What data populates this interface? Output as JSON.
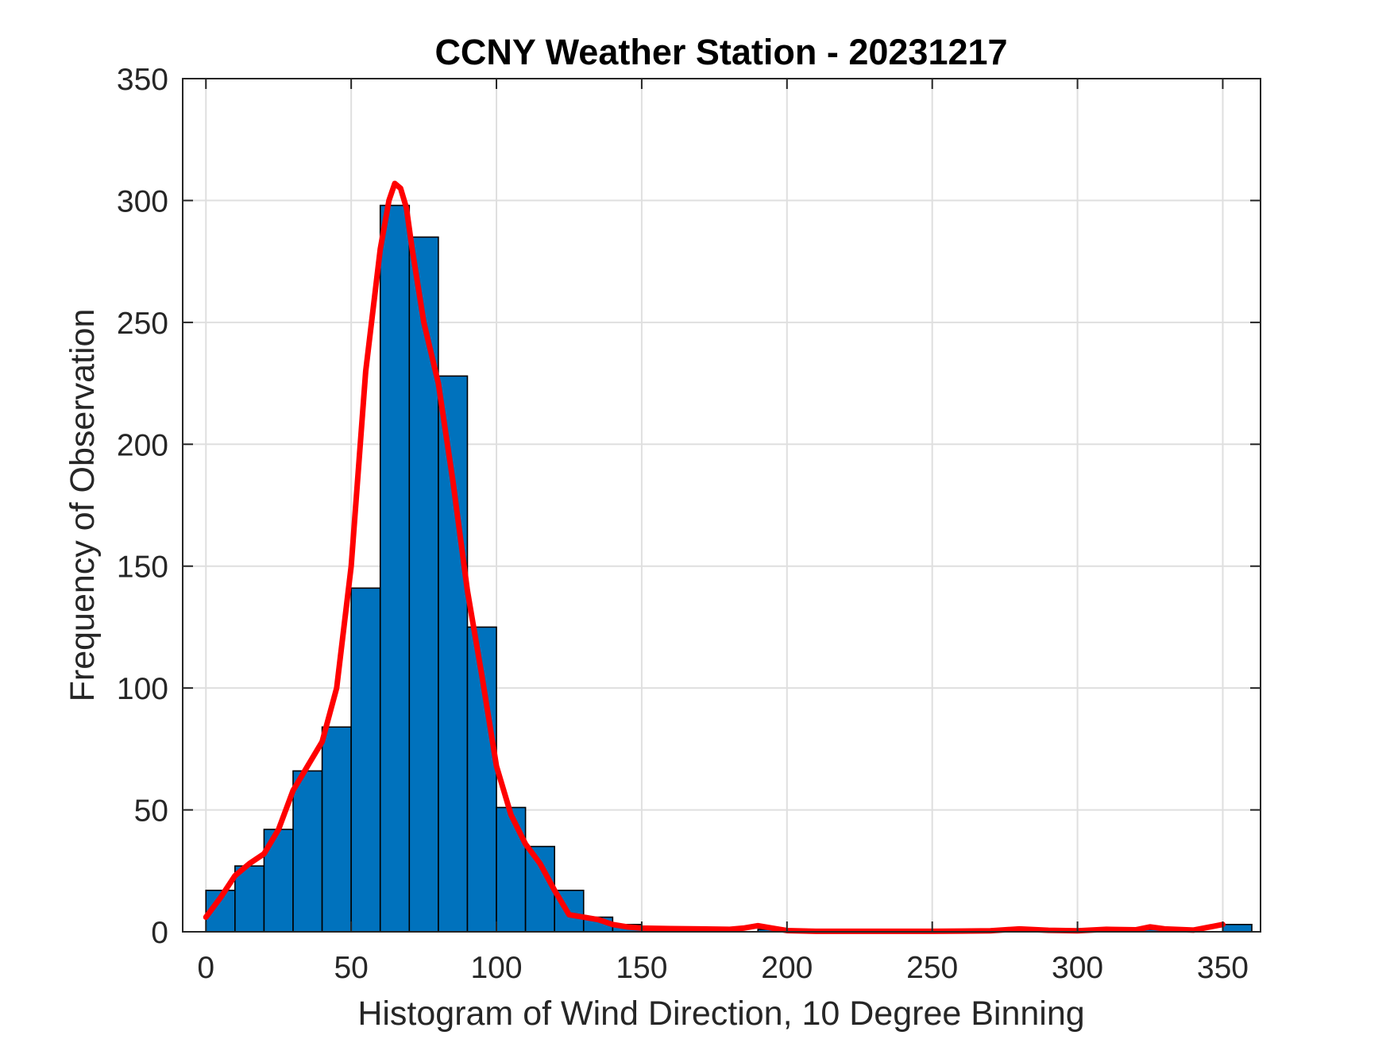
{
  "chart_data": {
    "type": "bar",
    "title": "CCNY Weather Station - 20231217",
    "xlabel": "Histogram of Wind Direction, 10 Degree Binning",
    "ylabel": "Frequency of Observation",
    "xlim": [
      -8,
      363
    ],
    "ylim": [
      0,
      350
    ],
    "xticks": [
      0,
      50,
      100,
      150,
      200,
      250,
      300,
      350
    ],
    "yticks": [
      0,
      50,
      100,
      150,
      200,
      250,
      300,
      350
    ],
    "grid": true,
    "box": true,
    "bin_width": 10,
    "bin_edges": [
      0,
      10,
      20,
      30,
      40,
      50,
      60,
      70,
      80,
      90,
      100,
      110,
      120,
      130,
      140,
      150,
      160,
      170,
      180,
      190,
      200,
      210,
      220,
      230,
      240,
      250,
      260,
      270,
      280,
      290,
      300,
      310,
      320,
      330,
      340,
      350,
      360
    ],
    "counts": [
      17,
      27,
      42,
      66,
      84,
      141,
      298,
      285,
      228,
      125,
      51,
      35,
      17,
      6,
      3,
      1,
      1,
      1,
      0,
      1,
      0,
      0,
      0,
      0,
      0,
      0,
      0,
      0,
      0,
      0,
      0,
      0,
      1,
      1,
      0,
      3
    ],
    "bar_color": "#0072bd",
    "curve": {
      "color": "#ff0000",
      "x": [
        0,
        5,
        10,
        15,
        20,
        25,
        30,
        35,
        40,
        45,
        50,
        55,
        60,
        63,
        65,
        67,
        69,
        71,
        73,
        75,
        80,
        85,
        90,
        95,
        100,
        105,
        110,
        115,
        120,
        125,
        130,
        135,
        140,
        145,
        150,
        160,
        170,
        180,
        185,
        190,
        195,
        200,
        210,
        220,
        230,
        240,
        250,
        260,
        270,
        280,
        290,
        300,
        310,
        320,
        325,
        330,
        340,
        350
      ],
      "y": [
        6,
        14,
        23,
        28,
        32,
        42,
        58,
        68,
        78,
        100,
        150,
        230,
        280,
        300,
        307,
        305,
        297,
        280,
        265,
        250,
        225,
        185,
        140,
        105,
        68,
        48,
        36,
        28,
        17,
        7,
        6,
        5,
        3,
        2,
        1.5,
        1.3,
        1.2,
        1,
        1.5,
        2.5,
        1.5,
        0.5,
        0.2,
        0.2,
        0.2,
        0.2,
        0.2,
        0.3,
        0.4,
        1.2,
        0.6,
        0.4,
        1,
        0.8,
        2,
        1.2,
        0.7,
        3
      ]
    }
  }
}
